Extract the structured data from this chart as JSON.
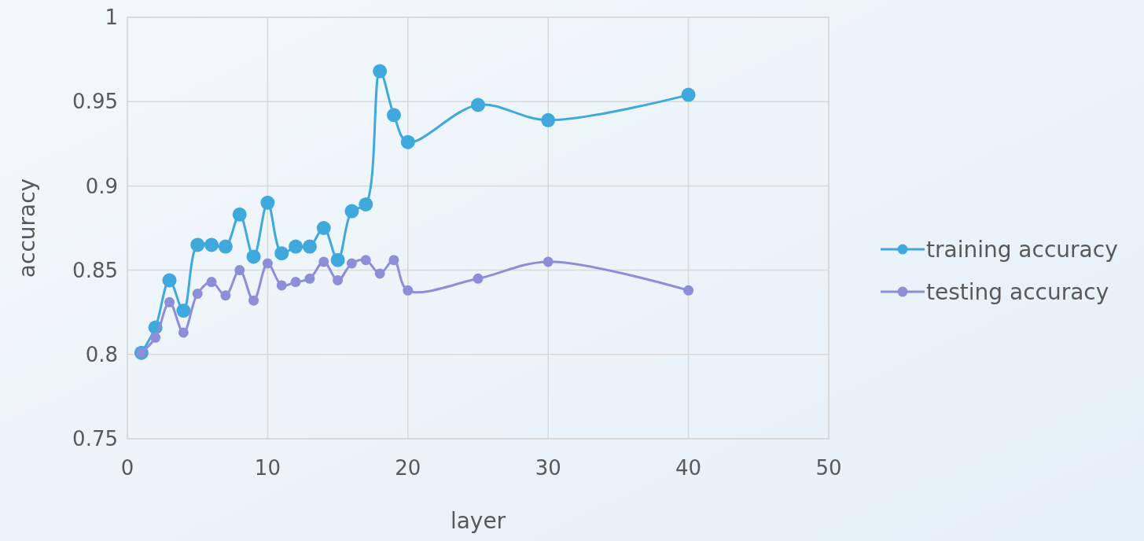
{
  "chart_data": {
    "type": "line",
    "xlabel": "layer",
    "ylabel": "accuracy",
    "x": [
      1,
      2,
      3,
      4,
      5,
      6,
      7,
      8,
      9,
      10,
      11,
      12,
      13,
      14,
      15,
      16,
      17,
      18,
      19,
      20,
      25,
      30,
      40
    ],
    "series": [
      {
        "name": "training accuracy",
        "color": "#3fa9dd",
        "values": [
          0.801,
          0.816,
          0.844,
          0.826,
          0.865,
          0.865,
          0.864,
          0.883,
          0.858,
          0.89,
          0.86,
          0.864,
          0.864,
          0.875,
          0.856,
          0.885,
          0.889,
          0.968,
          0.942,
          0.926,
          0.948,
          0.939,
          0.954
        ]
      },
      {
        "name": "testing accuracy",
        "color": "#8c8fd8",
        "values": [
          0.801,
          0.81,
          0.831,
          0.813,
          0.836,
          0.843,
          0.835,
          0.85,
          0.832,
          0.854,
          0.841,
          0.843,
          0.845,
          0.855,
          0.844,
          0.854,
          0.856,
          0.848,
          0.856,
          0.838,
          0.845,
          0.855,
          0.838
        ]
      }
    ],
    "xlim": [
      0,
      50
    ],
    "xticks": [
      0,
      10,
      20,
      30,
      40,
      50
    ],
    "ylim": [
      0.75,
      1
    ],
    "yticks": [
      0.75,
      0.8,
      0.85,
      0.9,
      0.95,
      1
    ],
    "grid": true,
    "legend": "right",
    "marker": "circle",
    "line_style": "solid"
  }
}
